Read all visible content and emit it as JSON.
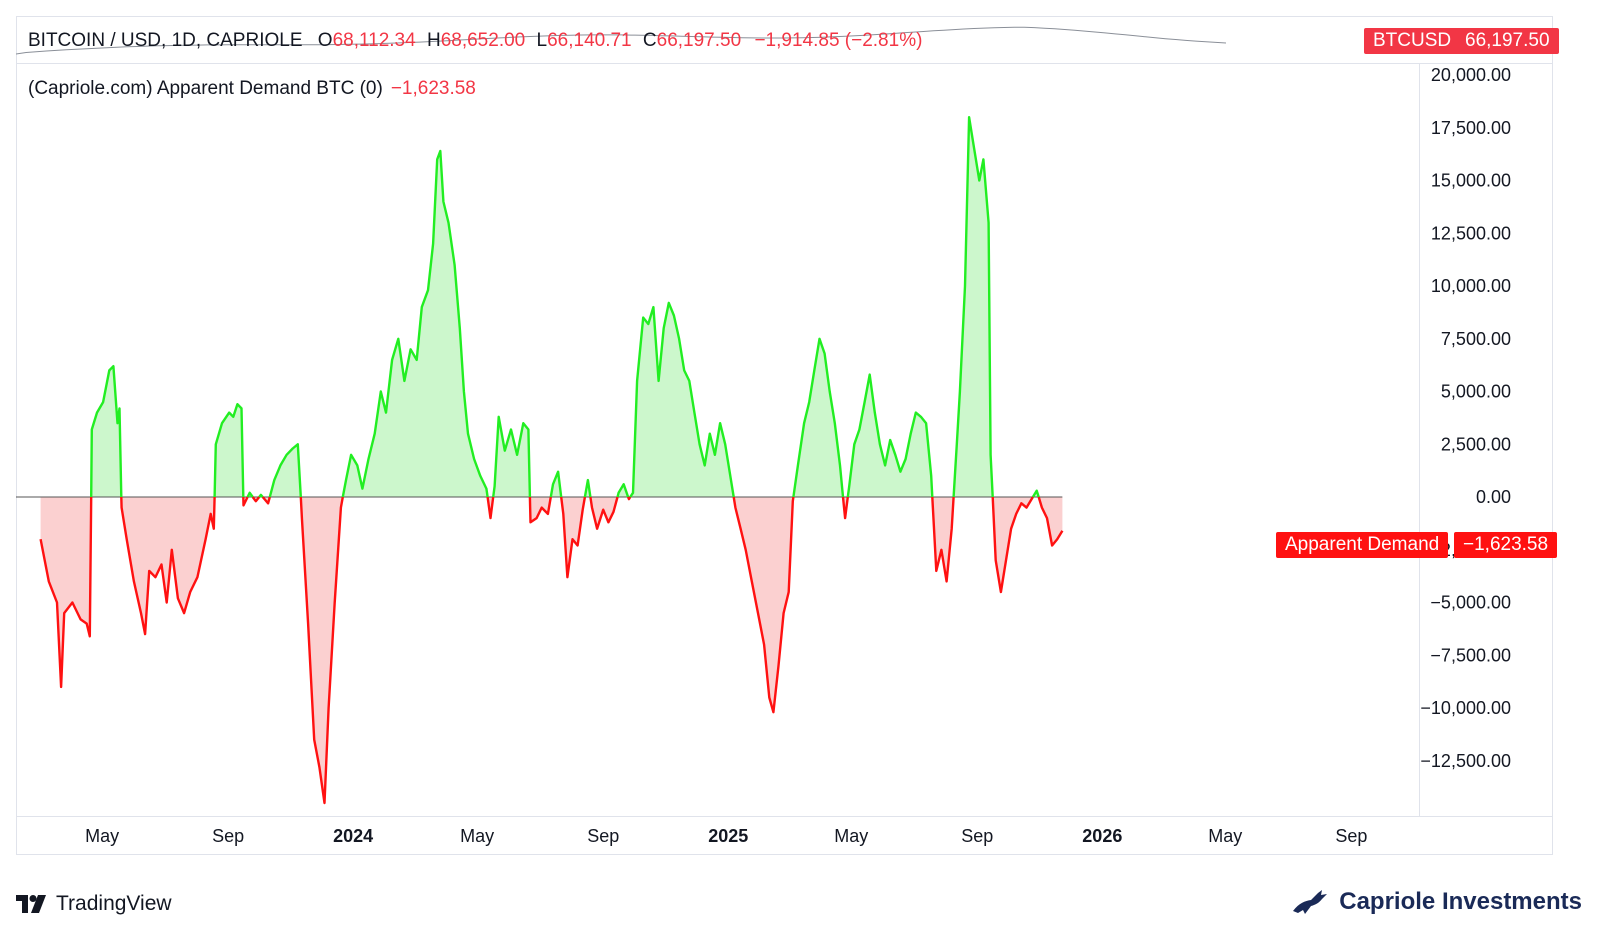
{
  "header": {
    "symbol": "BITCOIN / USD, 1D, CAPRIOLE",
    "open_label": "O",
    "open": "68,112.34",
    "high_label": "H",
    "high": "68,652.00",
    "low_label": "L",
    "low": "66,140.71",
    "close_label": "C",
    "close": "66,197.50",
    "change": "−1,914.85 (−2.81%)",
    "price_tag_name": "BTCUSD",
    "price_tag_value": "66,197.50"
  },
  "indicator": {
    "name": "(Capriole.com) Apparent Demand BTC (0)",
    "value": "−1,623.58",
    "tag_name": "Apparent Demand",
    "tag_value": "−1,623.58"
  },
  "footer": {
    "platform": "TradingView",
    "brand": "Capriole Investments"
  },
  "colors": {
    "positive_line": "#22ee22",
    "positive_fill": "#ccf7cc",
    "negative_line": "#ff1111",
    "negative_fill": "#fbd0d0",
    "zero_line": "#555555",
    "tag_red": "#f23645"
  },
  "chart_data": {
    "type": "area",
    "title": "(Capriole.com) Apparent Demand BTC (0)",
    "xlabel": "",
    "ylabel": "",
    "baseline": 0,
    "ylim": [
      -14500,
      20000
    ],
    "y_ticks": [
      20000,
      17500,
      15000,
      12500,
      10000,
      7500,
      5000,
      2500,
      0,
      -2500,
      -5000,
      -7500,
      -10000,
      -12500
    ],
    "y_tick_labels": [
      "20,000.00",
      "17,500.00",
      "15,000.00",
      "12,500.00",
      "10,000.00",
      "7,500.00",
      "5,000.00",
      "2,500.00",
      "0.00",
      "−2,500.00",
      "−5,000.00",
      "−7,500.00",
      "−10,000.00",
      "−12,500.00"
    ],
    "x_ticks": [
      {
        "date": "2023-05-01",
        "label": "May",
        "bold": false
      },
      {
        "date": "2023-09-01",
        "label": "Sep",
        "bold": false
      },
      {
        "date": "2024-01-01",
        "label": "2024",
        "bold": true
      },
      {
        "date": "2024-05-01",
        "label": "May",
        "bold": false
      },
      {
        "date": "2024-09-01",
        "label": "Sep",
        "bold": false
      },
      {
        "date": "2025-01-01",
        "label": "2025",
        "bold": true
      },
      {
        "date": "2025-05-01",
        "label": "May",
        "bold": false
      },
      {
        "date": "2025-09-01",
        "label": "Sep",
        "bold": false
      },
      {
        "date": "2026-01-01",
        "label": "2026",
        "bold": true
      },
      {
        "date": "2026-05-01",
        "label": "May",
        "bold": false
      },
      {
        "date": "2026-09-01",
        "label": "Sep",
        "bold": false
      }
    ],
    "x_range": [
      "2023-02-06",
      "2026-11-06"
    ],
    "series": [
      {
        "values": [
          [
            "2023-03-02",
            -2000
          ],
          [
            "2023-03-10",
            -4000
          ],
          [
            "2023-03-18",
            -5000
          ],
          [
            "2023-03-22",
            -9000
          ],
          [
            "2023-03-25",
            -5500
          ],
          [
            "2023-04-02",
            -5000
          ],
          [
            "2023-04-10",
            -5800
          ],
          [
            "2023-04-16",
            -6000
          ],
          [
            "2023-04-19",
            -6600
          ],
          [
            "2023-04-21",
            3200
          ],
          [
            "2023-04-26",
            4000
          ],
          [
            "2023-05-02",
            4500
          ],
          [
            "2023-05-08",
            6000
          ],
          [
            "2023-05-12",
            6200
          ],
          [
            "2023-05-16",
            3500
          ],
          [
            "2023-05-18",
            4200
          ],
          [
            "2023-05-20",
            -500
          ],
          [
            "2023-05-25",
            -2000
          ],
          [
            "2023-06-01",
            -4000
          ],
          [
            "2023-06-08",
            -5500
          ],
          [
            "2023-06-12",
            -6500
          ],
          [
            "2023-06-16",
            -3500
          ],
          [
            "2023-06-22",
            -3800
          ],
          [
            "2023-06-28",
            -3200
          ],
          [
            "2023-07-03",
            -5000
          ],
          [
            "2023-07-08",
            -2500
          ],
          [
            "2023-07-14",
            -4800
          ],
          [
            "2023-07-20",
            -5500
          ],
          [
            "2023-07-26",
            -4500
          ],
          [
            "2023-08-02",
            -3800
          ],
          [
            "2023-08-10",
            -2000
          ],
          [
            "2023-08-15",
            -800
          ],
          [
            "2023-08-18",
            -1500
          ],
          [
            "2023-08-20",
            2500
          ],
          [
            "2023-08-26",
            3500
          ],
          [
            "2023-09-02",
            4000
          ],
          [
            "2023-09-06",
            3800
          ],
          [
            "2023-09-10",
            4400
          ],
          [
            "2023-09-14",
            4200
          ],
          [
            "2023-09-16",
            -400
          ],
          [
            "2023-09-22",
            200
          ],
          [
            "2023-09-28",
            -200
          ],
          [
            "2023-10-03",
            100
          ],
          [
            "2023-10-10",
            -300
          ],
          [
            "2023-10-16",
            800
          ],
          [
            "2023-10-22",
            1500
          ],
          [
            "2023-10-28",
            2000
          ],
          [
            "2023-11-03",
            2300
          ],
          [
            "2023-11-08",
            2500
          ],
          [
            "2023-11-12",
            -1000
          ],
          [
            "2023-11-18",
            -6000
          ],
          [
            "2023-11-24",
            -11500
          ],
          [
            "2023-11-29",
            -12800
          ],
          [
            "2023-12-04",
            -14500
          ],
          [
            "2023-12-08",
            -10000
          ],
          [
            "2023-12-14",
            -5000
          ],
          [
            "2023-12-20",
            -500
          ],
          [
            "2023-12-25",
            800
          ],
          [
            "2023-12-30",
            2000
          ],
          [
            "2024-01-05",
            1500
          ],
          [
            "2024-01-10",
            400
          ],
          [
            "2024-01-16",
            1800
          ],
          [
            "2024-01-22",
            3000
          ],
          [
            "2024-01-28",
            5000
          ],
          [
            "2024-02-02",
            4000
          ],
          [
            "2024-02-08",
            6500
          ],
          [
            "2024-02-14",
            7500
          ],
          [
            "2024-02-20",
            5500
          ],
          [
            "2024-02-26",
            7000
          ],
          [
            "2024-03-03",
            6500
          ],
          [
            "2024-03-08",
            9000
          ],
          [
            "2024-03-14",
            9800
          ],
          [
            "2024-03-19",
            12000
          ],
          [
            "2024-03-23",
            16000
          ],
          [
            "2024-03-26",
            16400
          ],
          [
            "2024-03-29",
            14000
          ],
          [
            "2024-04-03",
            13000
          ],
          [
            "2024-04-09",
            11000
          ],
          [
            "2024-04-14",
            8000
          ],
          [
            "2024-04-18",
            5000
          ],
          [
            "2024-04-22",
            3000
          ],
          [
            "2024-04-28",
            1800
          ],
          [
            "2024-05-04",
            1000
          ],
          [
            "2024-05-10",
            400
          ],
          [
            "2024-05-14",
            -1000
          ],
          [
            "2024-05-18",
            500
          ],
          [
            "2024-05-22",
            3800
          ],
          [
            "2024-05-28",
            2200
          ],
          [
            "2024-06-03",
            3200
          ],
          [
            "2024-06-09",
            2000
          ],
          [
            "2024-06-15",
            3500
          ],
          [
            "2024-06-20",
            3200
          ],
          [
            "2024-06-22",
            -1200
          ],
          [
            "2024-06-28",
            -1000
          ],
          [
            "2024-07-03",
            -500
          ],
          [
            "2024-07-09",
            -800
          ],
          [
            "2024-07-14",
            600
          ],
          [
            "2024-07-19",
            1200
          ],
          [
            "2024-07-24",
            -800
          ],
          [
            "2024-07-28",
            -3800
          ],
          [
            "2024-08-02",
            -2000
          ],
          [
            "2024-08-07",
            -2300
          ],
          [
            "2024-08-12",
            -600
          ],
          [
            "2024-08-17",
            800
          ],
          [
            "2024-08-21",
            -500
          ],
          [
            "2024-08-26",
            -1500
          ],
          [
            "2024-09-01",
            -600
          ],
          [
            "2024-09-06",
            -1200
          ],
          [
            "2024-09-11",
            -700
          ],
          [
            "2024-09-16",
            200
          ],
          [
            "2024-09-21",
            600
          ],
          [
            "2024-09-26",
            -100
          ],
          [
            "2024-09-30",
            200
          ],
          [
            "2024-10-04",
            5500
          ],
          [
            "2024-10-10",
            8500
          ],
          [
            "2024-10-15",
            8200
          ],
          [
            "2024-10-20",
            9000
          ],
          [
            "2024-10-25",
            5500
          ],
          [
            "2024-10-30",
            8000
          ],
          [
            "2024-11-04",
            9200
          ],
          [
            "2024-11-09",
            8600
          ],
          [
            "2024-11-14",
            7500
          ],
          [
            "2024-11-19",
            6000
          ],
          [
            "2024-11-24",
            5500
          ],
          [
            "2024-11-29",
            4000
          ],
          [
            "2024-12-04",
            2500
          ],
          [
            "2024-12-09",
            1500
          ],
          [
            "2024-12-14",
            3000
          ],
          [
            "2024-12-19",
            2000
          ],
          [
            "2024-12-24",
            3500
          ],
          [
            "2024-12-29",
            2500
          ],
          [
            "2025-01-03",
            1000
          ],
          [
            "2025-01-08",
            -500
          ],
          [
            "2025-01-13",
            -1500
          ],
          [
            "2025-01-18",
            -2500
          ],
          [
            "2025-01-24",
            -4000
          ],
          [
            "2025-01-30",
            -5500
          ],
          [
            "2025-02-05",
            -7000
          ],
          [
            "2025-02-10",
            -9500
          ],
          [
            "2025-02-14",
            -10200
          ],
          [
            "2025-02-19",
            -8000
          ],
          [
            "2025-02-24",
            -5500
          ],
          [
            "2025-03-01",
            -4500
          ],
          [
            "2025-03-05",
            -200
          ],
          [
            "2025-03-10",
            1500
          ],
          [
            "2025-03-16",
            3500
          ],
          [
            "2025-03-21",
            4500
          ],
          [
            "2025-03-26",
            6000
          ],
          [
            "2025-03-31",
            7500
          ],
          [
            "2025-04-05",
            6800
          ],
          [
            "2025-04-10",
            5000
          ],
          [
            "2025-04-15",
            3500
          ],
          [
            "2025-04-20",
            1500
          ],
          [
            "2025-04-25",
            -1000
          ],
          [
            "2025-04-29",
            500
          ],
          [
            "2025-05-04",
            2500
          ],
          [
            "2025-05-09",
            3200
          ],
          [
            "2025-05-14",
            4500
          ],
          [
            "2025-05-19",
            5800
          ],
          [
            "2025-05-24",
            4000
          ],
          [
            "2025-05-29",
            2500
          ],
          [
            "2025-06-03",
            1500
          ],
          [
            "2025-06-08",
            2700
          ],
          [
            "2025-06-13",
            2000
          ],
          [
            "2025-06-18",
            1200
          ],
          [
            "2025-06-23",
            1800
          ],
          [
            "2025-06-28",
            3000
          ],
          [
            "2025-07-03",
            4000
          ],
          [
            "2025-07-08",
            3800
          ],
          [
            "2025-07-13",
            3500
          ],
          [
            "2025-07-18",
            1000
          ],
          [
            "2025-07-23",
            -3500
          ],
          [
            "2025-07-28",
            -2500
          ],
          [
            "2025-08-02",
            -4000
          ],
          [
            "2025-08-07",
            -1500
          ],
          [
            "2025-08-12",
            2500
          ],
          [
            "2025-08-15",
            5000
          ],
          [
            "2025-08-20",
            10000
          ],
          [
            "2025-08-24",
            18000
          ],
          [
            "2025-08-29",
            16500
          ],
          [
            "2025-09-03",
            15000
          ],
          [
            "2025-09-07",
            16000
          ],
          [
            "2025-09-12",
            13000
          ],
          [
            "2025-09-14",
            2000
          ],
          [
            "2025-09-19",
            -3000
          ],
          [
            "2025-09-24",
            -4500
          ],
          [
            "2025-09-29",
            -3000
          ],
          [
            "2025-10-04",
            -1500
          ],
          [
            "2025-10-09",
            -800
          ],
          [
            "2025-10-14",
            -300
          ],
          [
            "2025-10-19",
            -500
          ],
          [
            "2025-10-24",
            -100
          ],
          [
            "2025-10-29",
            300
          ],
          [
            "2025-11-03",
            -500
          ],
          [
            "2025-11-08",
            -1000
          ],
          [
            "2025-11-13",
            -2300
          ],
          [
            "2025-11-18",
            -2000
          ],
          [
            "2025-11-23",
            -1600
          ]
        ]
      }
    ]
  }
}
